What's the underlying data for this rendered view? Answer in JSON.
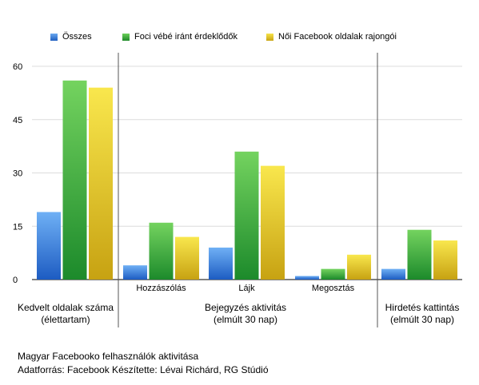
{
  "chart_data": {
    "type": "bar",
    "legend_position": "top",
    "grid": true,
    "ylim": [
      0,
      60
    ],
    "yticks": [
      0,
      15,
      30,
      45,
      60
    ],
    "series": [
      {
        "name": "Összes",
        "color": "#3a7fd5",
        "values": [
          19,
          4,
          9,
          1,
          3
        ]
      },
      {
        "name": "Foci vébé iránt érdeklődők",
        "color": "#3aa13a",
        "values": [
          56,
          16,
          36,
          3,
          14
        ]
      },
      {
        "name": "Női Facebook oldalak rajongói",
        "color": "#e3c21c",
        "values": [
          54,
          12,
          32,
          7,
          11
        ]
      }
    ],
    "categories": [
      "",
      "Hozzászólás",
      "Lájk",
      "Megosztás",
      ""
    ],
    "groups": [
      {
        "label_line1": "Kedvelt oldalak száma",
        "label_line2": "(élettartam)"
      },
      {
        "label_line1": "Bejegyzés aktivitás",
        "label_line2": "(elmúlt 30 nap)"
      },
      {
        "label_line1": "Hirdetés kattintás",
        "label_line2": "(elmúlt 30 nap)"
      }
    ]
  },
  "footer": {
    "line1": "Magyar Facebooko felhasználók aktivitása",
    "line2": "Adatforrás: Facebook Készítette: Lévai Richárd, RG Stúdió"
  }
}
